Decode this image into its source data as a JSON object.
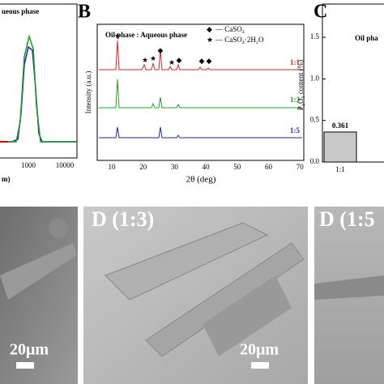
{
  "panel_a": {
    "title": "ueous phase",
    "x_ticks": [
      "1000",
      "10000"
    ],
    "x_label": "m)"
  },
  "panel_b": {
    "letter": "B",
    "legend_title": "Oil phase : Aqueous phase",
    "legend": [
      {
        "symbol": "◆",
        "name": "— CaSO₄"
      },
      {
        "symbol": "★",
        "name": "— CaSO₄·2H₂O"
      }
    ],
    "ratios": [
      "1:1",
      "1:3",
      "1:5"
    ],
    "y_label": "Intensity (a.u.)",
    "x_ticks": [
      "10",
      "20",
      "30",
      "40",
      "50",
      "60",
      "70"
    ],
    "x_label": "2θ (deg)"
  },
  "chart_data": {
    "type": "bar",
    "letter": "C",
    "title": "Oil pha",
    "y_label": "P₂O₅ content (%)",
    "categories": [
      "1:1"
    ],
    "values": [
      0.361
    ],
    "value_labels": [
      "0.361"
    ],
    "color": "#c8c8c8",
    "ylim": [
      0,
      1.9
    ],
    "yticks": [
      {
        "value": 0,
        "label": "0.0"
      },
      {
        "value": 0.5,
        "label": "0.5"
      },
      {
        "value": 1,
        "label": "1.0"
      },
      {
        "value": 1.5,
        "label": "1.5"
      }
    ]
  },
  "panel_d": [
    {
      "label": "D (1:3)",
      "scale": "20μm"
    },
    {
      "label": "D (1:5",
      "scale": ""
    }
  ],
  "panel_d_left": {
    "scale": "20μm"
  }
}
